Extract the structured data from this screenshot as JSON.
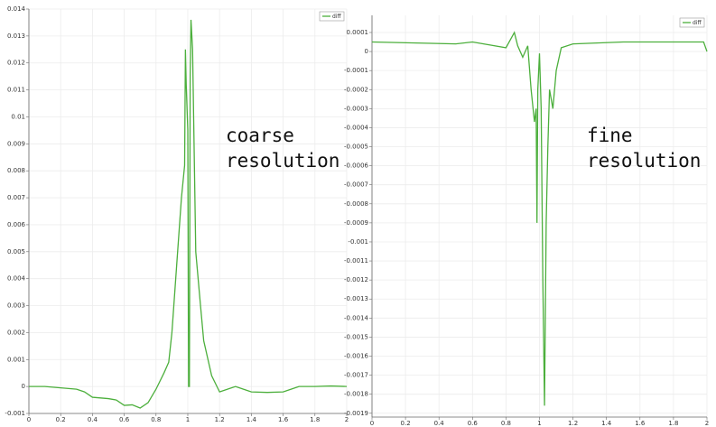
{
  "chart_data": [
    {
      "type": "line",
      "annotation": [
        "coarse",
        "resolution"
      ],
      "x": [
        0,
        0.1,
        0.2,
        0.3,
        0.35,
        0.4,
        0.5,
        0.55,
        0.6,
        0.65,
        0.7,
        0.75,
        0.8,
        0.85,
        0.88,
        0.9,
        0.93,
        0.96,
        0.98,
        0.985,
        0.99,
        1.0,
        1.005,
        1.01,
        1.015,
        1.02,
        1.03,
        1.05,
        1.08,
        1.1,
        1.15,
        1.2,
        1.25,
        1.3,
        1.35,
        1.4,
        1.5,
        1.6,
        1.65,
        1.7,
        1.8,
        1.9,
        2
      ],
      "series": [
        {
          "name": "diff",
          "color": "#4caf3c",
          "values": [
            0,
            0,
            -5e-05,
            -0.0001,
            -0.0002,
            -0.0004,
            -0.00045,
            -0.0005,
            -0.0007,
            -0.00068,
            -0.0008,
            -0.0006,
            -0.0001,
            0.0005,
            0.0009,
            0.002,
            0.0045,
            0.007,
            0.0082,
            0.0125,
            0.0112,
            0.0095,
            0,
            0,
            0.0115,
            0.0136,
            0.0125,
            0.005,
            0.003,
            0.0017,
            0.0004,
            -0.0002,
            -0.0001,
            0,
            -0.0001,
            -0.0002,
            -0.00022,
            -0.0002,
            -0.0001,
            0,
            0,
            2e-05,
            0
          ]
        }
      ],
      "xlim": [
        0,
        2
      ],
      "xticks": [
        0,
        0.2,
        0.4,
        0.6,
        0.8,
        1,
        1.2,
        1.4,
        1.6,
        1.8,
        2
      ],
      "ylim": [
        -0.001,
        0.014
      ],
      "yticks": [
        -0.001,
        0,
        0.001,
        0.002,
        0.003,
        0.004,
        0.005,
        0.006,
        0.007,
        0.008,
        0.009,
        0.01,
        0.011,
        0.012,
        0.013,
        0.014
      ],
      "grid": true,
      "legend": "upper right"
    },
    {
      "type": "line",
      "annotation": [
        "fine",
        "resolution"
      ],
      "x": [
        0,
        0.5,
        0.6,
        0.8,
        0.85,
        0.87,
        0.9,
        0.93,
        0.95,
        0.97,
        0.98,
        0.985,
        0.99,
        1.0,
        1.01,
        1.02,
        1.03,
        1.04,
        1.05,
        1.06,
        1.08,
        1.1,
        1.13,
        1.2,
        1.5,
        1.9,
        1.98,
        2
      ],
      "series": [
        {
          "name": "diff",
          "color": "#4caf3c",
          "values": [
            5e-05,
            4e-05,
            5e-05,
            2e-05,
            0.0001,
            3e-05,
            -3e-05,
            3e-05,
            -0.0002,
            -0.00037,
            -0.0003,
            -0.0009,
            -0.0002,
            -1e-05,
            -0.0003,
            -0.0012,
            -0.00186,
            -0.0009,
            -0.0005,
            -0.0002,
            -0.0003,
            -0.0001,
            2e-05,
            4e-05,
            5e-05,
            5e-05,
            5e-05,
            0
          ]
        }
      ],
      "xlim": [
        0,
        2
      ],
      "xticks": [
        0,
        0.2,
        0.4,
        0.6,
        0.8,
        1,
        1.2,
        1.4,
        1.6,
        1.8,
        2
      ],
      "ylim": [
        -0.00192,
        0.00019
      ],
      "yticks": [
        -0.0019,
        -0.0018,
        -0.0017,
        -0.0016,
        -0.0015,
        -0.0014,
        -0.0013,
        -0.0012,
        -0.0011,
        -0.001,
        -0.0009,
        -0.0008,
        -0.0007,
        -0.0006,
        -0.0005,
        -0.0004,
        -0.0003,
        -0.0002,
        -0.0001,
        0,
        0.0001
      ],
      "grid": true,
      "legend": "upper right"
    }
  ]
}
